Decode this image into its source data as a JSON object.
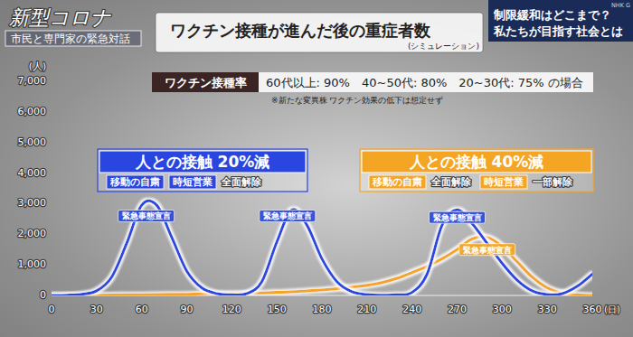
{
  "header": {
    "program": "新型コロナ",
    "program_sub": "市民と専門家の緊急対話",
    "topic": [
      "制限緩和はどこまで？",
      "私たちが目指す社会とは"
    ],
    "channel": "NHK G"
  },
  "vaccination": {
    "label": "ワクチン接種率",
    "rates": "60代以上: 90%　40~50代: 80%　20~30代: 75% の場合",
    "note": "※新たな変異株 ワクチン効果の低下は想定せず"
  },
  "chart_data": {
    "type": "line",
    "title": "ワクチン接種が進んだ後の重症者数",
    "subtitle": "(シミュレーション)",
    "x_label": "(日)",
    "y_label": "(人)",
    "x": [
      0,
      10,
      20,
      30,
      40,
      50,
      60,
      70,
      80,
      90,
      100,
      110,
      120,
      130,
      140,
      150,
      160,
      170,
      180,
      190,
      200,
      210,
      220,
      230,
      240,
      250,
      260,
      270,
      280,
      290,
      300,
      310,
      320,
      330,
      340,
      350,
      360
    ],
    "series": [
      {
        "name": "人との接触 20%減",
        "color": "#2a46e0",
        "values": [
          0,
          10,
          40,
          150,
          600,
          1700,
          2950,
          2950,
          1900,
          800,
          250,
          60,
          20,
          60,
          450,
          1750,
          2800,
          2300,
          1200,
          450,
          120,
          30,
          10,
          20,
          100,
          700,
          2300,
          2800,
          2350,
          1700,
          1050,
          500,
          150,
          30,
          60,
          300,
          700
        ],
        "measures": [
          {
            "restrict": [
              "移動の自粛",
              "時短営業"
            ],
            "lift": "全面解除"
          }
        ]
      },
      {
        "name": "人との接触 40%減",
        "color": "#f5a524",
        "values": [
          0,
          0,
          5,
          10,
          15,
          20,
          25,
          30,
          35,
          40,
          50,
          55,
          60,
          70,
          80,
          100,
          120,
          150,
          180,
          220,
          270,
          330,
          420,
          560,
          750,
          950,
          1200,
          1500,
          1850,
          1900,
          1600,
          1100,
          600,
          250,
          80,
          20,
          0
        ],
        "measures": [
          {
            "restrict": [
              "移動の自粛"
            ],
            "lift": "全面解除"
          },
          {
            "restrict": [
              "時短営業"
            ],
            "lift": "一部解除"
          }
        ]
      }
    ],
    "annotations": [
      {
        "text": "緊急事態宣言",
        "x": 63,
        "y": 2600,
        "color": "#2a46e0"
      },
      {
        "text": "緊急事態宣言",
        "x": 157,
        "y": 2600,
        "color": "#2a46e0"
      },
      {
        "text": "緊急事態宣言",
        "x": 270,
        "y": 2550,
        "color": "#2a46e0"
      },
      {
        "text": "緊急事態宣言",
        "x": 290,
        "y": 1500,
        "color": "#f5a524"
      }
    ],
    "xlim": [
      0,
      360
    ],
    "xticks": [
      0,
      30,
      60,
      90,
      120,
      150,
      180,
      210,
      240,
      270,
      300,
      330,
      360
    ],
    "ylim": [
      0,
      7000
    ],
    "yticks": [
      0,
      {
        "value": 1000,
        "label": "1,000"
      },
      {
        "value": 2000,
        "label": "2,000"
      },
      {
        "value": 3000,
        "label": "3,000"
      },
      {
        "value": 4000,
        "label": "4,000"
      },
      {
        "value": 5000,
        "label": "5,000"
      },
      {
        "value": 6000,
        "label": "6,000"
      },
      {
        "value": 7000,
        "label": "7,000"
      }
    ],
    "grid": false
  }
}
